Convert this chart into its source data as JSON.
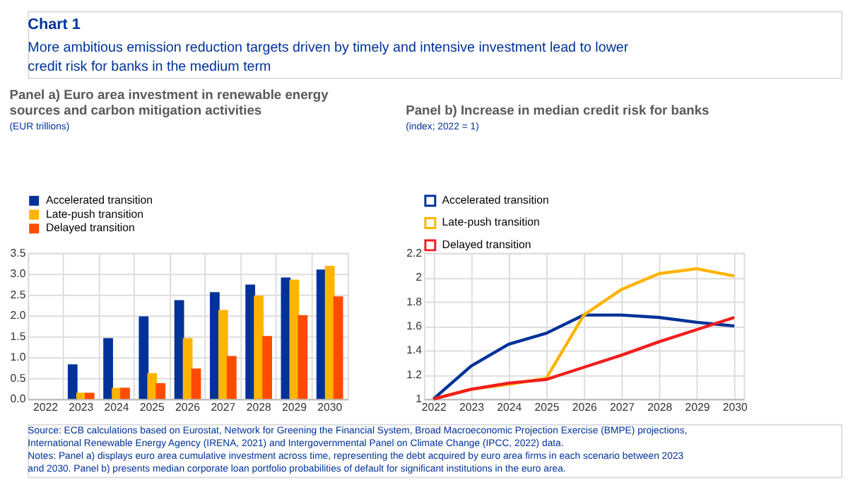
{
  "chart_data": [
    {
      "type": "other",
      "title": "Chart 1",
      "subtitle": "More ambitious emission reduction targets driven by timely and intensive investment lead to lower credit risk for banks in the medium term",
      "annotations": [
        "Source: ECB calculations based on Eurostat, Network for Greening the Financial System, Broad Macroeconomic Projection Exercise (BMPE) projections, International Renewable Energy Agency (IRENA, 2021) and Intergovernmental Panel on Climate Change (IPCC, 2022) data.",
        "Notes: Panel a) displays euro area cumulative investment across time, representing the debt acquired by euro area firms in each scenario between 2023 and 2030. Panel b) presents median corporate loan portfolio probabilities of default for significant institutions in the euro area."
      ]
    },
    {
      "type": "bar",
      "title": "Panel a) Euro area investment in renewable energy sources and carbon mitigation activities",
      "subtitle": "(EUR trillions)",
      "categories": [
        "2022",
        "2023",
        "2024",
        "2025",
        "2026",
        "2027",
        "2028",
        "2029",
        "2030"
      ],
      "series": [
        {
          "name": "Accelerated transition",
          "color": "#003299",
          "values": [
            0,
            0.83,
            1.46,
            1.98,
            2.37,
            2.56,
            2.74,
            2.91,
            3.1
          ]
        },
        {
          "name": "Late-push transition",
          "color": "#ffb400",
          "values": [
            0,
            0.15,
            0.27,
            0.62,
            1.46,
            2.13,
            2.48,
            2.86,
            3.19
          ]
        },
        {
          "name": "Delayed transition",
          "color": "#ff4b00",
          "values": [
            0,
            0.15,
            0.27,
            0.38,
            0.73,
            1.03,
            1.51,
            2.01,
            2.46
          ]
        }
      ],
      "ylim": [
        0,
        3.5
      ],
      "yticks": [
        {
          "value": 0,
          "label": "0.0"
        },
        0.5,
        {
          "value": 1,
          "label": "1.0"
        },
        1.5,
        {
          "value": 2,
          "label": "2.0"
        },
        2.5,
        {
          "value": 3,
          "label": "3.0"
        },
        3.5
      ],
      "grid": true,
      "legend": "top left"
    },
    {
      "type": "line",
      "title": "Panel b) Increase in median credit risk for banks",
      "subtitle": "(index; 2022 = 1)",
      "categories": [
        "2022",
        "2023",
        "2024",
        "2025",
        "2026",
        "2027",
        "2028",
        "2029",
        "2030"
      ],
      "series": [
        {
          "name": "Accelerated transition",
          "color": "#003299",
          "values": [
            1.0,
            1.27,
            1.45,
            1.54,
            1.69,
            1.69,
            1.67,
            1.63,
            1.6
          ]
        },
        {
          "name": "Late-push transition",
          "color": "#ffb400",
          "values": [
            1.0,
            1.08,
            1.12,
            1.17,
            1.69,
            1.9,
            2.03,
            2.07,
            2.01
          ]
        },
        {
          "name": "Delayed transition",
          "color": "#f01e1e",
          "values": [
            1.0,
            1.08,
            1.13,
            1.16,
            1.26,
            1.36,
            1.47,
            1.57,
            1.67
          ]
        }
      ],
      "ylim": [
        1,
        2.2
      ],
      "yticks": [
        1,
        1.2,
        1.4,
        1.6,
        1.8,
        2,
        2.2
      ],
      "grid": true,
      "legend": "top left",
      "line_style": "solid",
      "marker": "none"
    }
  ]
}
